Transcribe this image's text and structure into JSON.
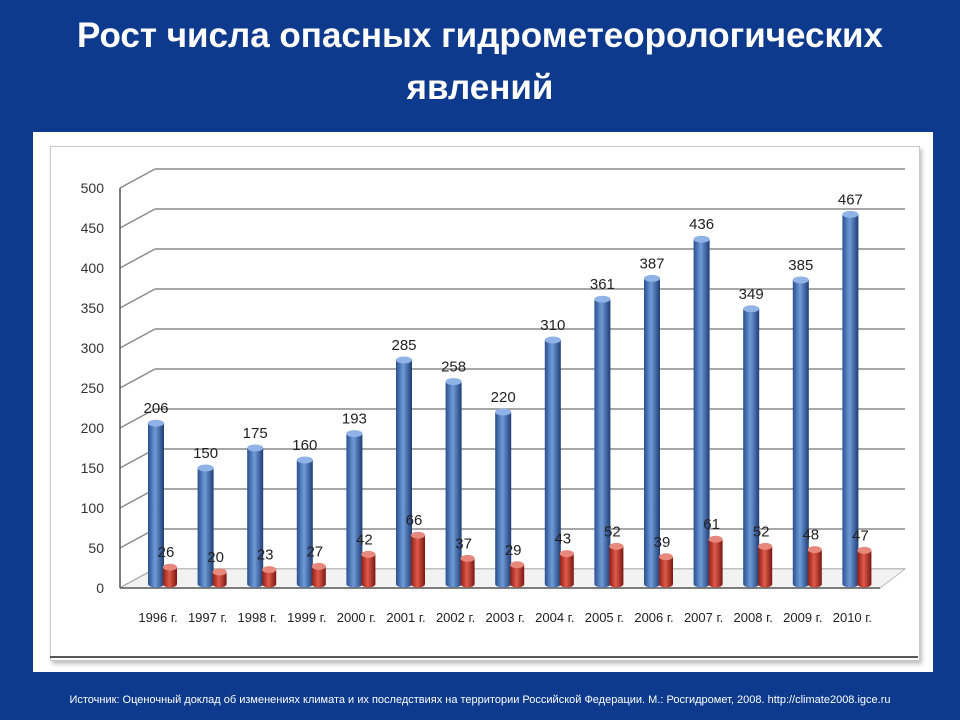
{
  "slide": {
    "title": "Рост числа опасных гидрометеорологических явлений",
    "source": "Источник: Оценочный доклад об изменениях климата и их последствиях на территории Российской Федерации. М.: Росгидромет, 2008.  http://climate2008.igce.ru"
  },
  "colors": {
    "background": "#0d3a8c",
    "series_blue": "#3f6fb8",
    "series_red": "#c0392b"
  },
  "chart_data": {
    "type": "bar",
    "categories": [
      "1996 г.",
      "1997 г.",
      "1998 г.",
      "1999 г.",
      "2000 г.",
      "2001 г.",
      "2002 г.",
      "2003 г.",
      "2004 г.",
      "2005 г.",
      "2006 г.",
      "2007 г.",
      "2008 г.",
      "2009 г.",
      "2010 г."
    ],
    "series": [
      {
        "values": [
          206,
          150,
          175,
          160,
          193,
          285,
          258,
          220,
          310,
          361,
          387,
          436,
          349,
          385,
          467
        ]
      },
      {
        "values": [
          26,
          20,
          23,
          27,
          42,
          66,
          37,
          29,
          43,
          52,
          39,
          61,
          52,
          48,
          47
        ]
      }
    ],
    "yticks": [
      0,
      50,
      100,
      150,
      200,
      250,
      300,
      350,
      400,
      450,
      500
    ],
    "ylim": [
      0,
      500
    ],
    "grid": true,
    "legend": "none",
    "style": "3d-cylinder"
  }
}
